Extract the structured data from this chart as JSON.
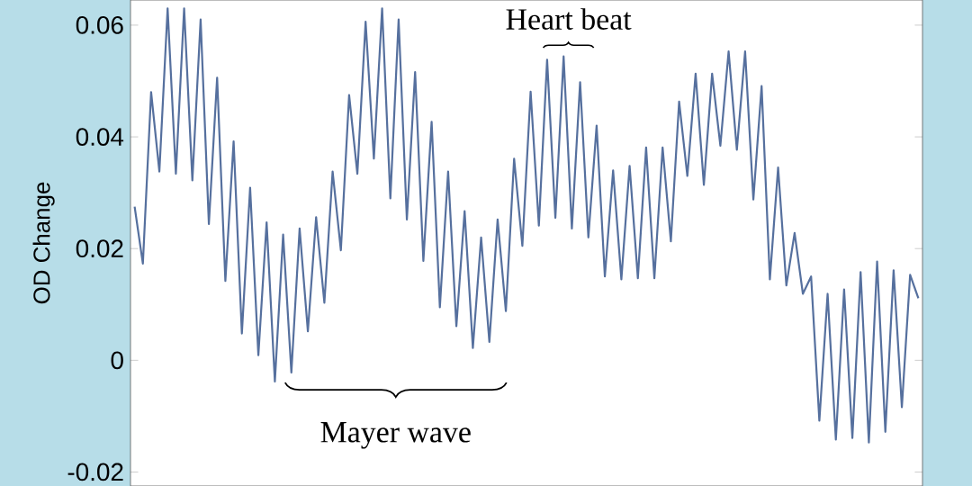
{
  "chart_data": {
    "type": "line",
    "ylabel": "OD Change",
    "color": "#56709e",
    "marker": "none",
    "line_style": "solid",
    "tick_labels": "y",
    "ylim": [
      -0.0225,
      0.0645
    ],
    "yticks": [
      -0.02,
      0,
      0.02,
      0.04,
      0.06
    ],
    "annotations": [
      "Heart beat",
      "Mayer wave"
    ],
    "categories": [
      null,
      null,
      null,
      null,
      null,
      null,
      null,
      null,
      null,
      null,
      null,
      null,
      null,
      null,
      null,
      null,
      null,
      null,
      null,
      null,
      null,
      null,
      null,
      null,
      null,
      null,
      null,
      null,
      null,
      null,
      null,
      null,
      null,
      null,
      null,
      null,
      null,
      null,
      null,
      null,
      null,
      null,
      null,
      null,
      null,
      null,
      null,
      null,
      null,
      null,
      null,
      null,
      null,
      null,
      null,
      null,
      null,
      null,
      null,
      null,
      null,
      null,
      null,
      null,
      null,
      null,
      null,
      null,
      null,
      null,
      null,
      null,
      null,
      null,
      null,
      null,
      null,
      null,
      null,
      null,
      null,
      null,
      null,
      null,
      null,
      null,
      null,
      null,
      null,
      null,
      null,
      null,
      null,
      null,
      null,
      null
    ],
    "values": [
      0.0275,
      0.0173,
      0.048,
      0.0338,
      0.063,
      0.0334,
      0.063,
      0.0322,
      0.061,
      0.0244,
      0.0506,
      0.0142,
      0.0392,
      0.0048,
      0.0309,
      0.0009,
      0.0247,
      -0.0038,
      0.0225,
      -0.0022,
      0.0236,
      0.0052,
      0.0256,
      0.0103,
      0.0338,
      0.0197,
      0.0475,
      0.0334,
      0.0606,
      0.0361,
      0.063,
      0.029,
      0.061,
      0.0252,
      0.0516,
      0.0178,
      0.0427,
      0.0095,
      0.0338,
      0.0061,
      0.0267,
      0.0022,
      0.022,
      0.0033,
      0.0252,
      0.0088,
      0.0361,
      0.0205,
      0.0481,
      0.0241,
      0.0538,
      0.0255,
      0.0544,
      0.0236,
      0.0498,
      0.022,
      0.042,
      0.015,
      0.034,
      0.0145,
      0.0348,
      0.0147,
      0.0381,
      0.0147,
      0.0381,
      0.0213,
      0.0463,
      0.033,
      0.0513,
      0.0314,
      0.0513,
      0.0384,
      0.0553,
      0.0377,
      0.0553,
      0.0288,
      0.0491,
      0.0145,
      0.0345,
      0.0134,
      0.0228,
      0.0119,
      0.015,
      -0.0108,
      0.0119,
      -0.0142,
      0.0127,
      -0.0139,
      0.0158,
      -0.0147,
      0.0177,
      -0.0128,
      0.0161,
      -0.0084,
      0.0153,
      0.0111
    ]
  }
}
